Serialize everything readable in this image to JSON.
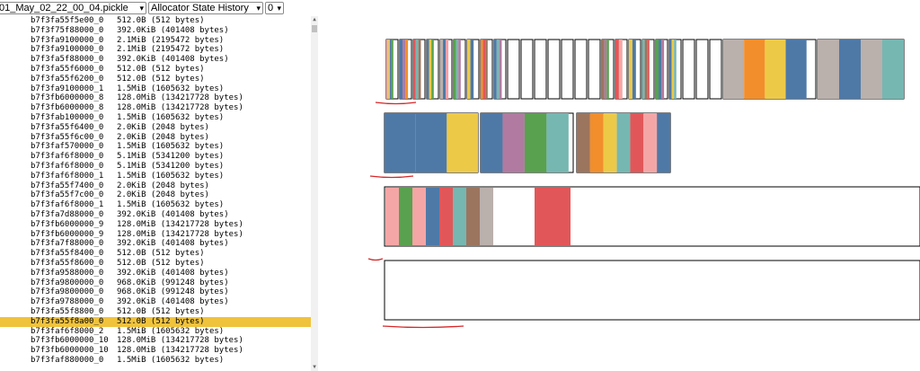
{
  "toolbar": {
    "file_select": "01_May_02_22_00_04.pickle",
    "view_select": "Allocator State History",
    "index_select": "0"
  },
  "rows": [
    {
      "addr": "b7f3fa55f5e00_0",
      "size": "512.0B (512 bytes)"
    },
    {
      "addr": "b7f3f75f88000_0",
      "size": "392.0KiB (401408 bytes)"
    },
    {
      "addr": "b7f3fa9100000_0",
      "size": "2.1MiB (2195472 bytes)"
    },
    {
      "addr": "b7f3fa9100000_0",
      "size": "2.1MiB (2195472 bytes)"
    },
    {
      "addr": "b7f3fa5f88000_0",
      "size": "392.0KiB (401408 bytes)"
    },
    {
      "addr": "b7f3fa55f6000_0",
      "size": "512.0B (512 bytes)"
    },
    {
      "addr": "b7f3fa55f6200_0",
      "size": "512.0B (512 bytes)"
    },
    {
      "addr": "b7f3fa9100000_1",
      "size": "1.5MiB (1605632 bytes)"
    },
    {
      "addr": "b7f3fb6000000_8",
      "size": "128.0MiB (134217728 bytes)"
    },
    {
      "addr": "b7f3fb6000000_8",
      "size": "128.0MiB (134217728 bytes)"
    },
    {
      "addr": "b7f3fab100000_0",
      "size": "1.5MiB (1605632 bytes)"
    },
    {
      "addr": "b7f3fa55f6400_0",
      "size": "2.0KiB (2048 bytes)"
    },
    {
      "addr": "b7f3fa55f6c00_0",
      "size": "2.0KiB (2048 bytes)"
    },
    {
      "addr": "b7f3faf570000_0",
      "size": "1.5MiB (1605632 bytes)"
    },
    {
      "addr": "b7f3faf6f8000_0",
      "size": "5.1MiB (5341200 bytes)"
    },
    {
      "addr": "b7f3faf6f8000_0",
      "size": "5.1MiB (5341200 bytes)"
    },
    {
      "addr": "b7f3faf6f8000_1",
      "size": "1.5MiB (1605632 bytes)"
    },
    {
      "addr": "b7f3fa55f7400_0",
      "size": "2.0KiB (2048 bytes)"
    },
    {
      "addr": "b7f3fa55f7c00_0",
      "size": "2.0KiB (2048 bytes)"
    },
    {
      "addr": "b7f3faf6f8000_1",
      "size": "1.5MiB (1605632 bytes)"
    },
    {
      "addr": "b7f3fa7d88000_0",
      "size": "392.0KiB (401408 bytes)"
    },
    {
      "addr": "b7f3fb6000000_9",
      "size": "128.0MiB (134217728 bytes)"
    },
    {
      "addr": "b7f3fb6000000_9",
      "size": "128.0MiB (134217728 bytes)"
    },
    {
      "addr": "b7f3fa7f88000_0",
      "size": "392.0KiB (401408 bytes)"
    },
    {
      "addr": "b7f3fa55f8400_0",
      "size": "512.0B (512 bytes)"
    },
    {
      "addr": "b7f3fa55f8600_0",
      "size": "512.0B (512 bytes)"
    },
    {
      "addr": "b7f3fa9588000_0",
      "size": "392.0KiB (401408 bytes)"
    },
    {
      "addr": "b7f3fa9800000_0",
      "size": "968.0KiB (991248 bytes)"
    },
    {
      "addr": "b7f3fa9800000_0",
      "size": "968.0KiB (991248 bytes)"
    },
    {
      "addr": "b7f3fa9788000_0",
      "size": "392.0KiB (401408 bytes)"
    },
    {
      "addr": "b7f3fa55f8800_0",
      "size": "512.0B (512 bytes)"
    },
    {
      "addr": "b7f3fa55f8a00_0",
      "size": "512.0B (512 bytes)",
      "selected": true
    },
    {
      "addr": "b7f3faf6f8000_2",
      "size": "1.5MiB (1605632 bytes)"
    },
    {
      "addr": "b7f3fb6000000_10",
      "size": "128.0MiB (134217728 bytes)"
    },
    {
      "addr": "b7f3fb6000000_10",
      "size": "128.0MiB (134217728 bytes)"
    },
    {
      "addr": "b7f3faf880000_0",
      "size": "1.5MiB (1605632 bytes)"
    }
  ],
  "segments": [
    {
      "segment": 1,
      "blocks": [
        {
          "fill": 0.6,
          "slices": [
            "#f4a6a6",
            "#e9c46a",
            "#4e79a7",
            "#59a14f"
          ]
        },
        {
          "fill": 0.7,
          "slices": [
            "#4e79a7",
            "#b07aa1",
            "#f28e2b"
          ]
        },
        {
          "fill": 0.65,
          "slices": [
            "#e15759",
            "#76b7b2",
            "#9c755f"
          ]
        },
        {
          "fill": 0.6,
          "slices": [
            "#4e79a7",
            "#edc948",
            "#59a14f"
          ]
        },
        {
          "fill": 0.7,
          "slices": [
            "#bab0ac",
            "#4e79a7",
            "#ff9da7"
          ]
        },
        {
          "fill": 0.6,
          "slices": [
            "#59a14f",
            "#76b7b2",
            "#b07aa1"
          ]
        },
        {
          "fill": 0.55,
          "slices": [
            "#edc948",
            "#4e79a7"
          ]
        },
        {
          "fill": 0.6,
          "slices": [
            "#f28e2b",
            "#e15759",
            "#9c755f"
          ]
        },
        {
          "fill": 0.65,
          "slices": [
            "#4e79a7",
            "#76b7b2",
            "#b07aa1"
          ]
        },
        {
          "fill": 0,
          "slices": []
        },
        {
          "fill": 0,
          "slices": []
        },
        {
          "fill": 0,
          "slices": []
        },
        {
          "fill": 0,
          "slices": []
        },
        {
          "fill": 0,
          "slices": []
        },
        {
          "fill": 0,
          "slices": []
        },
        {
          "fill": 0,
          "slices": []
        },
        {
          "fill": 0.6,
          "slices": [
            "#9c755f",
            "#b07aa1",
            "#59a14f"
          ]
        },
        {
          "fill": 0.6,
          "slices": [
            "#e15759",
            "#f4a6a6"
          ]
        },
        {
          "fill": 0.6,
          "slices": [
            "#edc948",
            "#4e79a7"
          ]
        },
        {
          "fill": 0.6,
          "slices": [
            "#76b7b2",
            "#9c755f",
            "#e15759"
          ]
        },
        {
          "fill": 0.7,
          "slices": [
            "#59a14f",
            "#4e79a7",
            "#b07aa1"
          ]
        },
        {
          "fill": 0.6,
          "slices": [
            "#4e79a7",
            "#edc948",
            "#76b7b2"
          ]
        },
        {
          "fill": 0,
          "slices": []
        },
        {
          "fill": 0,
          "slices": []
        },
        {
          "fill": 0,
          "slices": []
        },
        {
          "fill": 0.9,
          "slices": [
            "#bab0ac",
            "#f28e2b",
            "#edc948",
            "#4e79a7"
          ]
        },
        {
          "fill": 1,
          "slices": [
            "#bab0ac",
            "#4e79a7",
            "#bab0ac",
            "#76b7b2"
          ]
        }
      ]
    },
    {
      "segment": 2,
      "blocks": [
        {
          "fill": 1,
          "slices": [
            "#4e79a7",
            "#4e79a7",
            "#edc948"
          ]
        },
        {
          "fill": 0.95,
          "slices": [
            "#4e79a7",
            "#b07aa1",
            "#59a14f",
            "#76b7b2"
          ]
        },
        {
          "fill": 1,
          "slices": [
            "#9c755f",
            "#f28e2b",
            "#edc948",
            "#76b7b2",
            "#e15759",
            "#f4a6a6",
            "#4e79a7"
          ]
        }
      ]
    },
    {
      "segment": 3,
      "blocks": [
        {
          "fill": 0.2,
          "slices": [
            "#f4a6a6",
            "#59a14f",
            "#f4a6a6",
            "#4e79a7",
            "#e15759",
            "#76b7b2",
            "#9c755f",
            "#bab0ac"
          ],
          "extra": "#e15759"
        }
      ]
    },
    {
      "segment": 4,
      "blocks": [
        {
          "fill": 0,
          "slices": []
        }
      ]
    }
  ]
}
